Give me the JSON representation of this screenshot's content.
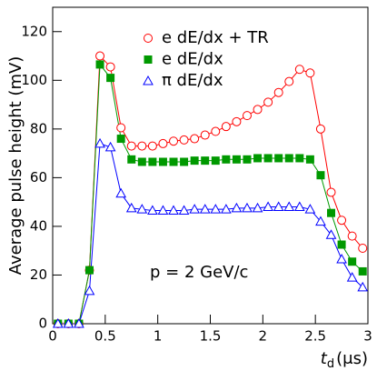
{
  "chart_data": {
    "type": "line",
    "ylabel": "Average pulse height (mV)",
    "xlabel": {
      "symbol": "t",
      "subscript": "d",
      "unit": "(μs)"
    },
    "annotation": "p = 2 GeV/c",
    "x": [
      0.05,
      0.15,
      0.25,
      0.35,
      0.45,
      0.55,
      0.65,
      0.75,
      0.85,
      0.95,
      1.05,
      1.15,
      1.25,
      1.35,
      1.45,
      1.55,
      1.65,
      1.75,
      1.85,
      1.95,
      2.05,
      2.15,
      2.25,
      2.35,
      2.45,
      2.55,
      2.65,
      2.75,
      2.85,
      2.95
    ],
    "series": [
      {
        "name": "e dE/dx + TR",
        "color": "#ff0000",
        "marker": "open-circle",
        "values": [
          0,
          0,
          0,
          22,
          110,
          105.5,
          80.5,
          73,
          73,
          73,
          74,
          75,
          75.5,
          76,
          77.5,
          79,
          81,
          83,
          85.5,
          88,
          91,
          95,
          99.5,
          104.5,
          103,
          80,
          54,
          42.5,
          36,
          31
        ]
      },
      {
        "name": "e dE/dx",
        "color": "#009900",
        "marker": "filled-square",
        "values": [
          0,
          0,
          0,
          22,
          106.5,
          101,
          76,
          67.5,
          66.5,
          66.5,
          66.5,
          66.5,
          66.5,
          67,
          67,
          67,
          67.5,
          67.5,
          67.5,
          68,
          68,
          68,
          68,
          68,
          67.5,
          61,
          45.5,
          32.5,
          25.5,
          21.5
        ]
      },
      {
        "name": "π dE/dx",
        "color": "#0000ff",
        "marker": "open-triangle",
        "values": [
          0,
          0,
          0,
          13.5,
          74,
          72.5,
          53.5,
          47.5,
          47,
          46.5,
          46.5,
          46.5,
          46.5,
          47,
          47,
          47,
          47,
          47.5,
          47.5,
          47.5,
          48,
          48,
          48,
          48,
          47,
          42,
          36.5,
          26.5,
          19,
          15
        ]
      }
    ],
    "xlim": [
      0,
      3
    ],
    "xticks": [
      0,
      0.5,
      1,
      1.5,
      2,
      2.5,
      3
    ],
    "ylim": [
      0,
      130
    ],
    "yticks": [
      0,
      20,
      40,
      60,
      80,
      100,
      120
    ],
    "grid": false,
    "legend": "top-center"
  }
}
